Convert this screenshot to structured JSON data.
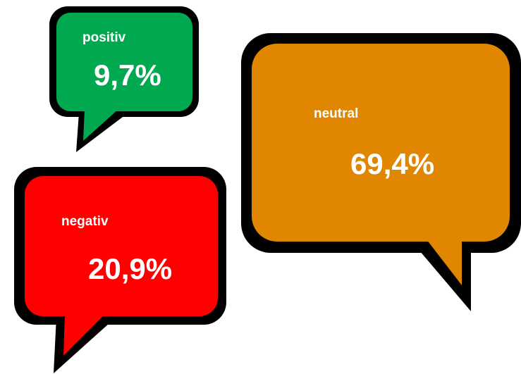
{
  "bubbles": [
    {
      "label": "positiv",
      "value": "9,7%",
      "color": "#00a94f"
    },
    {
      "label": "neutral",
      "value": "69,4%",
      "color": "#e08600"
    },
    {
      "label": "negativ",
      "value": "20,9%",
      "color": "#ff0000"
    }
  ]
}
